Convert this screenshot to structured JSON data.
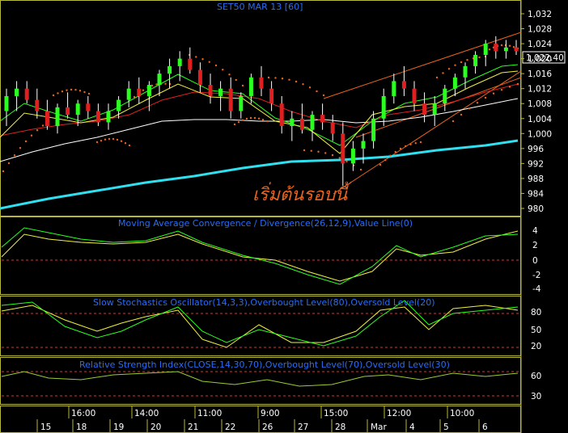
{
  "chart_data": {
    "type": "candlestick",
    "title": "SET50 MAR 13   [60]",
    "last_price": "1,022.40",
    "annotation": "เริ่มต้นรอบนี้",
    "price_axis": {
      "ticks": [
        "1,032",
        "1,028",
        "1,024",
        "1,020",
        "1,016",
        "1,012",
        "1,008",
        "1,004",
        "1,000",
        "996",
        "992",
        "988",
        "984",
        "980"
      ],
      "ylim": [
        978,
        1034
      ]
    },
    "time_axis": {
      "time_labels": [
        "16:00",
        "14:00",
        "11:00",
        "9:00",
        "15:00",
        "12:00",
        "10:00"
      ],
      "date_labels": [
        "15",
        "18",
        "19",
        "20",
        "21",
        "22",
        "26",
        "27",
        "28",
        "Mar",
        "4",
        "5",
        "6"
      ]
    },
    "candles": [
      {
        "o": 1006,
        "h": 1012,
        "l": 1002,
        "c": 1010
      },
      {
        "o": 1010,
        "h": 1014,
        "l": 1006,
        "c": 1012
      },
      {
        "o": 1012,
        "h": 1014,
        "l": 1008,
        "c": 1009
      },
      {
        "o": 1009,
        "h": 1012,
        "l": 1004,
        "c": 1006
      },
      {
        "o": 1006,
        "h": 1009,
        "l": 1001,
        "c": 1002
      },
      {
        "o": 1002,
        "h": 1008,
        "l": 1000,
        "c": 1007
      },
      {
        "o": 1007,
        "h": 1011,
        "l": 1004,
        "c": 1005
      },
      {
        "o": 1005,
        "h": 1009,
        "l": 1002,
        "c": 1008
      },
      {
        "o": 1008,
        "h": 1010,
        "l": 1004,
        "c": 1006
      },
      {
        "o": 1006,
        "h": 1008,
        "l": 1002,
        "c": 1003
      },
      {
        "o": 1003,
        "h": 1008,
        "l": 1001,
        "c": 1006
      },
      {
        "o": 1006,
        "h": 1010,
        "l": 1004,
        "c": 1009
      },
      {
        "o": 1009,
        "h": 1014,
        "l": 1007,
        "c": 1012
      },
      {
        "o": 1012,
        "h": 1015,
        "l": 1008,
        "c": 1010
      },
      {
        "o": 1010,
        "h": 1014,
        "l": 1006,
        "c": 1013
      },
      {
        "o": 1013,
        "h": 1017,
        "l": 1010,
        "c": 1016
      },
      {
        "o": 1016,
        "h": 1020,
        "l": 1012,
        "c": 1018
      },
      {
        "o": 1018,
        "h": 1022,
        "l": 1014,
        "c": 1020
      },
      {
        "o": 1020,
        "h": 1023,
        "l": 1016,
        "c": 1017
      },
      {
        "o": 1017,
        "h": 1019,
        "l": 1011,
        "c": 1013
      },
      {
        "o": 1013,
        "h": 1016,
        "l": 1008,
        "c": 1010
      },
      {
        "o": 1010,
        "h": 1014,
        "l": 1006,
        "c": 1012
      },
      {
        "o": 1012,
        "h": 1015,
        "l": 1004,
        "c": 1006
      },
      {
        "o": 1006,
        "h": 1011,
        "l": 1004,
        "c": 1010
      },
      {
        "o": 1010,
        "h": 1016,
        "l": 1008,
        "c": 1015
      },
      {
        "o": 1015,
        "h": 1018,
        "l": 1010,
        "c": 1012
      },
      {
        "o": 1012,
        "h": 1014,
        "l": 1006,
        "c": 1008
      },
      {
        "o": 1008,
        "h": 1010,
        "l": 1000,
        "c": 1002
      },
      {
        "o": 1002,
        "h": 1006,
        "l": 998,
        "c": 1004
      },
      {
        "o": 1004,
        "h": 1008,
        "l": 1000,
        "c": 1001
      },
      {
        "o": 1001,
        "h": 1006,
        "l": 998,
        "c": 1005
      },
      {
        "o": 1005,
        "h": 1008,
        "l": 1001,
        "c": 1003
      },
      {
        "o": 1003,
        "h": 1005,
        "l": 998,
        "c": 1000
      },
      {
        "o": 1000,
        "h": 1003,
        "l": 986,
        "c": 992
      },
      {
        "o": 992,
        "h": 998,
        "l": 990,
        "c": 996
      },
      {
        "o": 996,
        "h": 1000,
        "l": 992,
        "c": 998
      },
      {
        "o": 998,
        "h": 1006,
        "l": 996,
        "c": 1004
      },
      {
        "o": 1004,
        "h": 1012,
        "l": 1002,
        "c": 1010
      },
      {
        "o": 1010,
        "h": 1016,
        "l": 1008,
        "c": 1014
      },
      {
        "o": 1014,
        "h": 1018,
        "l": 1010,
        "c": 1012
      },
      {
        "o": 1012,
        "h": 1014,
        "l": 1006,
        "c": 1008
      },
      {
        "o": 1008,
        "h": 1011,
        "l": 1003,
        "c": 1005
      },
      {
        "o": 1005,
        "h": 1010,
        "l": 1002,
        "c": 1008
      },
      {
        "o": 1008,
        "h": 1013,
        "l": 1006,
        "c": 1012
      },
      {
        "o": 1012,
        "h": 1016,
        "l": 1010,
        "c": 1015
      },
      {
        "o": 1015,
        "h": 1019,
        "l": 1012,
        "c": 1018
      },
      {
        "o": 1018,
        "h": 1022,
        "l": 1016,
        "c": 1021
      },
      {
        "o": 1021,
        "h": 1025,
        "l": 1018,
        "c": 1024
      },
      {
        "o": 1024,
        "h": 1026,
        "l": 1020,
        "c": 1022
      },
      {
        "o": 1022,
        "h": 1025,
        "l": 1020,
        "c": 1023
      },
      {
        "o": 1023,
        "h": 1025,
        "l": 1021,
        "c": 1022
      }
    ],
    "macd": {
      "title": "Moving Average Convergence / Divergence(26,12,9),Value Line(0)",
      "ticks": [
        "4",
        "2",
        "0",
        "-2",
        "-4"
      ]
    },
    "stochastic": {
      "title": "Slow Stochastics Oscillator(14,3,3),Overbought Level(80),Oversold Level(20)",
      "ticks": [
        "80",
        "50",
        "20"
      ]
    },
    "rsi": {
      "title": "Relative Strength Index(CLOSE,14,30,70),Overbought Level(70),Oversold Level(30)",
      "ticks": [
        "60",
        "30"
      ]
    },
    "colors": {
      "up": "#2aff20",
      "down": "#e02020",
      "wick": "#ffffff",
      "sar": "#e8641c",
      "axis_text": "#ffffff",
      "title": "#2a6cf2"
    }
  }
}
